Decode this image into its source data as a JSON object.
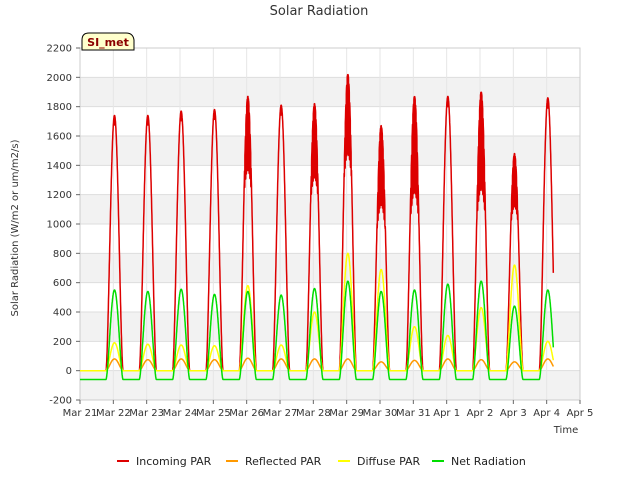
{
  "chart_data": {
    "type": "line",
    "title": "Solar Radiation",
    "xlabel": "Time",
    "ylabel": "Solar Radiation (W/m2 or um/m2/s)",
    "station_badge": "SI_met",
    "ylim": [
      -200,
      2200
    ],
    "y_ticks": [
      -200,
      0,
      200,
      400,
      600,
      800,
      1000,
      1200,
      1400,
      1600,
      1800,
      2000,
      2200
    ],
    "y_tick_labels": [
      "-200",
      "0",
      "200",
      "400",
      "600",
      "800",
      "1000",
      "1200",
      "1400",
      "1600",
      "1800",
      "2000",
      "2200"
    ],
    "xlim": [
      0,
      15
    ],
    "x_ticks": [
      0,
      1,
      2,
      3,
      4,
      5,
      6,
      7,
      8,
      9,
      10,
      11,
      12,
      13,
      14,
      15
    ],
    "x_tick_labels": [
      "Mar 21",
      "Mar 22",
      "Mar 23",
      "Mar 24",
      "Mar 25",
      "Mar 26",
      "Mar 27",
      "Mar 28",
      "Mar 29",
      "Mar 30",
      "Mar 31",
      "Apr 1",
      "Apr 2",
      "Apr 3",
      "Apr 4",
      "Apr 5"
    ],
    "x_units": "days since Mar 21",
    "days": [
      1,
      2,
      3,
      4,
      5,
      6,
      7,
      8,
      9,
      10,
      11,
      12,
      13,
      14
    ],
    "series": [
      {
        "name": "Incoming PAR",
        "color": "#dd0000",
        "daily_peak": [
          1740,
          1740,
          1770,
          1780,
          1870,
          1810,
          1820,
          2020,
          1670,
          1870,
          1870,
          1900,
          1480,
          1860
        ],
        "cloudy_dips": [
          0,
          0,
          0,
          0,
          1200,
          0,
          1150,
          1300,
          950,
          1000,
          0,
          1020,
          1000,
          0
        ],
        "night_value": 0
      },
      {
        "name": "Reflected PAR",
        "color": "#ff9900",
        "daily_peak": [
          80,
          75,
          80,
          75,
          85,
          80,
          80,
          80,
          60,
          70,
          80,
          75,
          60,
          80
        ],
        "night_value": 0
      },
      {
        "name": "Diffuse PAR",
        "color": "#ffff00",
        "daily_peak": [
          190,
          180,
          175,
          170,
          580,
          175,
          400,
          800,
          690,
          300,
          240,
          430,
          720,
          200
        ],
        "night_value": 0
      },
      {
        "name": "Net Radiation",
        "color": "#00dd00",
        "daily_peak": [
          550,
          540,
          555,
          520,
          540,
          515,
          560,
          610,
          540,
          550,
          590,
          610,
          440,
          550
        ],
        "night_value": -60
      }
    ],
    "legend_position": "bottom",
    "grid": true
  }
}
